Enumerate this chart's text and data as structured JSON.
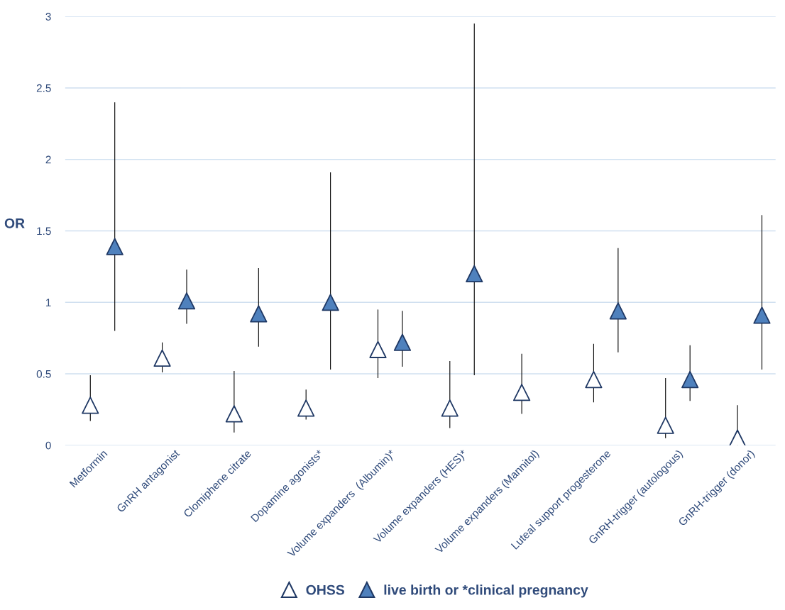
{
  "chart_data": {
    "type": "scatter",
    "ylabel": "OR",
    "categories": [
      "Metformin",
      "GnRH antagonist",
      "Clomiphene citrate",
      "Dopamine agonists*",
      "Volume expanders  (Albumin)*",
      "Volume expanders (HES)*",
      "Volume expanders (Mannitol)",
      "Luteal support progesterone",
      "GnRH-trigger (autologous)",
      "GnRH-trigger (donor)"
    ],
    "series": [
      {
        "name": "OHSS",
        "color": "#ffffff",
        "values": [
          0.28,
          0.61,
          0.22,
          0.26,
          0.67,
          0.26,
          0.37,
          0.46,
          0.14,
          0.05
        ],
        "errors": [
          [
            0.17,
            0.49
          ],
          [
            0.51,
            0.72
          ],
          [
            0.09,
            0.52
          ],
          [
            0.18,
            0.39
          ],
          [
            0.47,
            0.95
          ],
          [
            0.12,
            0.59
          ],
          [
            0.22,
            0.64
          ],
          [
            0.3,
            0.71
          ],
          [
            0.05,
            0.47
          ],
          [
            0.0,
            0.28
          ]
        ]
      },
      {
        "name": "live birth or *clinical pregnancy",
        "color": "#4f81bd",
        "values": [
          1.39,
          1.01,
          0.92,
          1.0,
          0.72,
          1.2,
          null,
          0.94,
          0.46,
          0.91
        ],
        "errors": [
          [
            0.8,
            2.4
          ],
          [
            0.85,
            1.23
          ],
          [
            0.69,
            1.24
          ],
          [
            0.53,
            1.91
          ],
          [
            0.55,
            0.94
          ],
          [
            0.49,
            2.95
          ],
          null,
          [
            0.65,
            1.38
          ],
          [
            0.31,
            0.7
          ],
          [
            0.53,
            1.61
          ]
        ]
      }
    ],
    "ylim": [
      0,
      3
    ],
    "yticks": [
      0,
      0.5,
      1,
      1.5,
      2,
      2.5,
      3
    ],
    "grid": "y",
    "legend": "bottom",
    "marker": "triangle"
  }
}
